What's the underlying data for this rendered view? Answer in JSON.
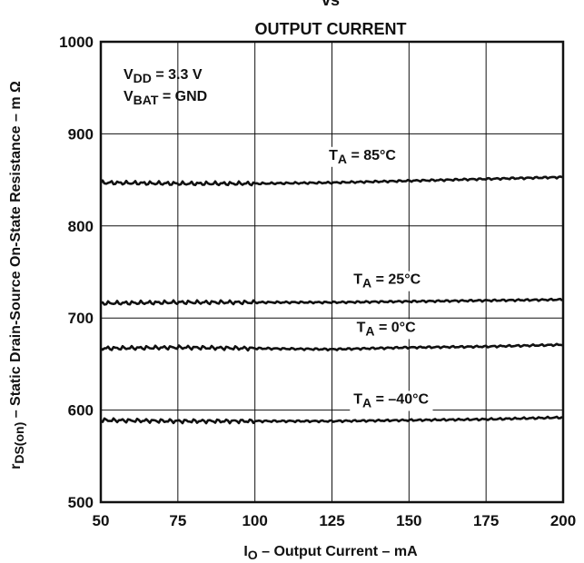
{
  "chart_data": {
    "type": "line",
    "title_line1": "vs",
    "title_line2": "OUTPUT CURRENT",
    "xlabel": {
      "main": "I",
      "sub": "O",
      "rest": " – Output Current – mA"
    },
    "ylabel": {
      "main": "r",
      "sub": "DS(on)",
      "rest": "  – Static Drain-Source On-State Resistance – m Ω"
    },
    "xlim": [
      50,
      200
    ],
    "ylim": [
      500,
      1000
    ],
    "x_ticks": [
      50,
      75,
      100,
      125,
      150,
      175,
      200
    ],
    "y_ticks": [
      500,
      600,
      700,
      800,
      900,
      1000
    ],
    "grid": true,
    "conditions": [
      {
        "main": "V",
        "sub": "DD",
        "rest": " = 3.3 V"
      },
      {
        "main": "V",
        "sub": "BAT",
        "rest": " = GND"
      }
    ],
    "series": [
      {
        "name": "T_A = 85°C",
        "label": {
          "main": "T",
          "sub": "A",
          "rest": " = 85°C"
        },
        "label_at": [
          124,
          872
        ],
        "x": [
          50,
          75,
          100,
          125,
          150,
          175,
          200
        ],
        "y": [
          847,
          846,
          846,
          847,
          849,
          851,
          853
        ]
      },
      {
        "name": "T_A = 25°C",
        "label": {
          "main": "T",
          "sub": "A",
          "rest": " = 25°C"
        },
        "label_at": [
          132,
          737
        ],
        "x": [
          50,
          75,
          100,
          125,
          150,
          175,
          200
        ],
        "y": [
          716,
          717,
          717,
          717,
          718,
          719,
          720
        ]
      },
      {
        "name": "T_A = 0°C",
        "label": {
          "main": "T",
          "sub": "A",
          "rest": " = 0°C"
        },
        "label_at": [
          133,
          685
        ],
        "x": [
          50,
          75,
          100,
          125,
          150,
          175,
          200
        ],
        "y": [
          667,
          668,
          667,
          666,
          668,
          669,
          671
        ]
      },
      {
        "name": "T_A = –40°C",
        "label": {
          "main": "T",
          "sub": "A",
          "rest": " = –40°C"
        },
        "label_at": [
          132,
          607
        ],
        "x": [
          50,
          75,
          100,
          125,
          150,
          175,
          200
        ],
        "y": [
          589,
          588,
          588,
          588,
          589,
          590,
          592
        ]
      }
    ]
  }
}
